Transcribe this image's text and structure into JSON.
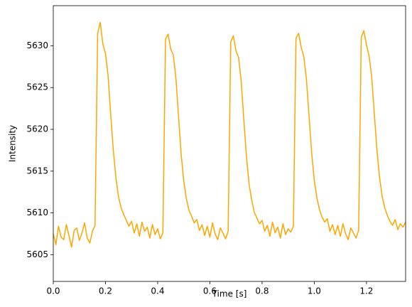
{
  "chart_data": {
    "type": "line",
    "xlabel": "Time [s]",
    "ylabel": "Intensity",
    "color": "#ffa500",
    "x": [
      0,
      0.01,
      0.02,
      0.03,
      0.04,
      0.05,
      0.06,
      0.07,
      0.08,
      0.09,
      0.1,
      0.11,
      0.12,
      0.13,
      0.14,
      0.15,
      0.16,
      0.17,
      0.18,
      0.19,
      0.2,
      0.21,
      0.22,
      0.23,
      0.24,
      0.25,
      0.26,
      0.27,
      0.28,
      0.29,
      0.3,
      0.31,
      0.32,
      0.33,
      0.34,
      0.35,
      0.36,
      0.37,
      0.38,
      0.39,
      0.4,
      0.41,
      0.42,
      0.43,
      0.44,
      0.45,
      0.46,
      0.47,
      0.48,
      0.49,
      0.5,
      0.51,
      0.52,
      0.53,
      0.54,
      0.55,
      0.56,
      0.57,
      0.58,
      0.59,
      0.6,
      0.61,
      0.62,
      0.63,
      0.64,
      0.65,
      0.66,
      0.67,
      0.68,
      0.69,
      0.7,
      0.71,
      0.72,
      0.73,
      0.74,
      0.75,
      0.76,
      0.77,
      0.78,
      0.79,
      0.8,
      0.81,
      0.82,
      0.83,
      0.84,
      0.85,
      0.86,
      0.87,
      0.88,
      0.89,
      0.9,
      0.91,
      0.92,
      0.93,
      0.94,
      0.95,
      0.96,
      0.97,
      0.98,
      0.99,
      1,
      1.01,
      1.02,
      1.03,
      1.04,
      1.05,
      1.06,
      1.07,
      1.08,
      1.09,
      1.1,
      1.11,
      1.12,
      1.13,
      1.14,
      1.15,
      1.16,
      1.17,
      1.18,
      1.19,
      1.2,
      1.21,
      1.22,
      1.23,
      1.24,
      1.25,
      1.26,
      1.27,
      1.28,
      1.29,
      1.3,
      1.31,
      1.32,
      1.33,
      1.34,
      1.35
    ],
    "values": [
      5607.5,
      5606.2,
      5608.4,
      5607.1,
      5606.8,
      5608.6,
      5607.3,
      5605.9,
      5607.9,
      5608.2,
      5606.7,
      5607.6,
      5608.8,
      5607.0,
      5606.4,
      5607.8,
      5608.5,
      5631.5,
      5632.8,
      5630.2,
      5629.1,
      5626.4,
      5621.8,
      5617.5,
      5614.2,
      5611.9,
      5610.6,
      5609.8,
      5609.1,
      5608.4,
      5609.0,
      5607.6,
      5608.7,
      5607.2,
      5608.9,
      5607.8,
      5608.3,
      5607.0,
      5608.6,
      5607.4,
      5608.1,
      5606.9,
      5607.6,
      5630.8,
      5631.4,
      5629.6,
      5628.9,
      5626.1,
      5621.5,
      5617.0,
      5613.8,
      5611.7,
      5610.3,
      5609.6,
      5608.8,
      5609.2,
      5607.9,
      5608.6,
      5607.3,
      5608.4,
      5607.1,
      5608.8,
      5607.5,
      5606.8,
      5608.2,
      5607.6,
      5606.9,
      5607.8,
      5630.5,
      5631.2,
      5629.4,
      5628.6,
      5625.8,
      5621.2,
      5616.8,
      5613.5,
      5611.6,
      5610.1,
      5609.4,
      5608.7,
      5609.1,
      5607.8,
      5608.5,
      5607.2,
      5608.9,
      5607.6,
      5608.3,
      5607.0,
      5608.7,
      5607.4,
      5608.1,
      5607.7,
      5608.4,
      5630.9,
      5631.5,
      5629.8,
      5628.7,
      5626.0,
      5621.6,
      5617.2,
      5613.9,
      5611.8,
      5610.4,
      5609.5,
      5608.9,
      5609.3,
      5607.8,
      5608.6,
      5607.4,
      5608.5,
      5607.2,
      5608.7,
      5607.5,
      5606.8,
      5608.2,
      5607.6,
      5607.0,
      5607.9,
      5631.0,
      5631.8,
      5630.1,
      5628.8,
      5626.3,
      5621.9,
      5617.6,
      5614.3,
      5612.0,
      5610.6,
      5609.7,
      5609.0,
      5608.5,
      5609.2,
      5608.0,
      5608.7,
      5608.3,
      5608.9
    ],
    "xlim": [
      0,
      1.35
    ],
    "ylim": [
      5601.8,
      5634.8
    ],
    "xticks": [
      {
        "value": 0,
        "label": "0.0"
      },
      0.2,
      0.4,
      0.6,
      0.8,
      {
        "value": 1,
        "label": "1.0"
      },
      1.2
    ],
    "yticks": [
      5605,
      5610,
      5615,
      5620,
      5625,
      5630
    ]
  }
}
